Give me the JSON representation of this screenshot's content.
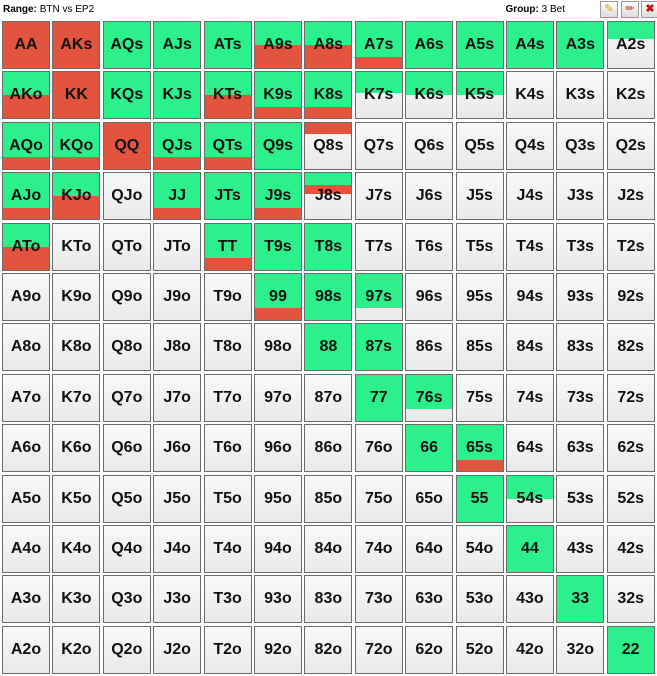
{
  "header": {
    "range_label": "Range:",
    "range_value": "BTN vs EP2",
    "group_label": "Group:",
    "group_value": "3 Bet",
    "buttons": [
      {
        "name": "edit-button",
        "icon": "pencil-icon"
      },
      {
        "name": "edit-alt-button",
        "icon": "brush-icon"
      },
      {
        "name": "close-button",
        "icon": "close-icon"
      }
    ]
  },
  "colors": {
    "green": "#2cf08c",
    "red": "#e2543e",
    "empty": "#f2f2f2"
  },
  "grid": {
    "rows": [
      [
        "AA",
        "AKs",
        "AQs",
        "AJs",
        "ATs",
        "A9s",
        "A8s",
        "A7s",
        "A6s",
        "A5s",
        "A4s",
        "A3s",
        "A2s"
      ],
      [
        "AKo",
        "KK",
        "KQs",
        "KJs",
        "KTs",
        "K9s",
        "K8s",
        "K7s",
        "K6s",
        "K5s",
        "K4s",
        "K3s",
        "K2s"
      ],
      [
        "AQo",
        "KQo",
        "QQ",
        "QJs",
        "QTs",
        "Q9s",
        "Q8s",
        "Q7s",
        "Q6s",
        "Q5s",
        "Q4s",
        "Q3s",
        "Q2s"
      ],
      [
        "AJo",
        "KJo",
        "QJo",
        "JJ",
        "JTs",
        "J9s",
        "J8s",
        "J7s",
        "J6s",
        "J5s",
        "J4s",
        "J3s",
        "J2s"
      ],
      [
        "ATo",
        "KTo",
        "QTo",
        "JTo",
        "TT",
        "T9s",
        "T8s",
        "T7s",
        "T6s",
        "T5s",
        "T4s",
        "T3s",
        "T2s"
      ],
      [
        "A9o",
        "K9o",
        "Q9o",
        "J9o",
        "T9o",
        "99",
        "98s",
        "97s",
        "96s",
        "95s",
        "94s",
        "93s",
        "92s"
      ],
      [
        "A8o",
        "K8o",
        "Q8o",
        "J8o",
        "T8o",
        "98o",
        "88",
        "87s",
        "86s",
        "85s",
        "84s",
        "83s",
        "82s"
      ],
      [
        "A7o",
        "K7o",
        "Q7o",
        "J7o",
        "T7o",
        "97o",
        "87o",
        "77",
        "76s",
        "75s",
        "74s",
        "73s",
        "72s"
      ],
      [
        "A6o",
        "K6o",
        "Q6o",
        "J6o",
        "T6o",
        "96o",
        "86o",
        "76o",
        "66",
        "65s",
        "64s",
        "63s",
        "62s"
      ],
      [
        "A5o",
        "K5o",
        "Q5o",
        "J5o",
        "T5o",
        "95o",
        "85o",
        "75o",
        "65o",
        "55",
        "54s",
        "53s",
        "52s"
      ],
      [
        "A4o",
        "K4o",
        "Q4o",
        "J4o",
        "T4o",
        "94o",
        "84o",
        "74o",
        "64o",
        "54o",
        "44",
        "43s",
        "42s"
      ],
      [
        "A3o",
        "K3o",
        "Q3o",
        "J3o",
        "T3o",
        "93o",
        "83o",
        "73o",
        "63o",
        "53o",
        "43o",
        "33",
        "32s"
      ],
      [
        "A2o",
        "K2o",
        "Q2o",
        "J2o",
        "T2o",
        "92o",
        "82o",
        "72o",
        "62o",
        "52o",
        "42o",
        "32o",
        "22"
      ]
    ],
    "frequencies": {
      "AA": {
        "green": 0,
        "red": 1
      },
      "AKs": {
        "green": 0,
        "red": 1
      },
      "AQs": {
        "green": 1,
        "red": 0
      },
      "AJs": {
        "green": 1,
        "red": 0
      },
      "ATs": {
        "green": 1,
        "red": 0
      },
      "A9s": {
        "green": 0.5,
        "red": 0.5
      },
      "A8s": {
        "green": 0.5,
        "red": 0.5
      },
      "A7s": {
        "green": 0.75,
        "red": 0.25
      },
      "A6s": {
        "green": 1,
        "red": 0
      },
      "A5s": {
        "green": 1,
        "red": 0
      },
      "A4s": {
        "green": 1,
        "red": 0
      },
      "A3s": {
        "green": 1,
        "red": 0
      },
      "A2s": {
        "green": 0.38,
        "red": 0
      },
      "AKo": {
        "green": 0.5,
        "red": 0.5
      },
      "KK": {
        "green": 0,
        "red": 1
      },
      "KQs": {
        "green": 1,
        "red": 0
      },
      "KJs": {
        "green": 1,
        "red": 0
      },
      "KTs": {
        "green": 0.5,
        "red": 0.5
      },
      "K9s": {
        "green": 0.75,
        "red": 0.25
      },
      "K8s": {
        "green": 0.75,
        "red": 0.25
      },
      "K7s": {
        "green": 0.45,
        "red": 0
      },
      "K6s": {
        "green": 0.5,
        "red": 0
      },
      "K5s": {
        "green": 0.5,
        "red": 0
      },
      "AQo": {
        "green": 0.75,
        "red": 0.25
      },
      "KQo": {
        "green": 0.75,
        "red": 0.25
      },
      "QQ": {
        "green": 0,
        "red": 1
      },
      "QJs": {
        "green": 0.75,
        "red": 0.25
      },
      "QTs": {
        "green": 0.75,
        "red": 0.25
      },
      "Q9s": {
        "green": 1,
        "red": 0
      },
      "Q8s": {
        "green": 0,
        "red": 0.25
      },
      "AJo": {
        "green": 0.75,
        "red": 0.25
      },
      "KJo": {
        "green": 0.5,
        "red": 0.5
      },
      "JJ": {
        "green": 0.75,
        "red": 0.25
      },
      "JTs": {
        "green": 1,
        "red": 0
      },
      "J9s": {
        "green": 0.75,
        "red": 0.25
      },
      "J8s": {
        "green": 0.25,
        "red": 0.2
      },
      "ATo": {
        "green": 0.5,
        "red": 0.5
      },
      "TT": {
        "green": 0.75,
        "red": 0.25
      },
      "T9s": {
        "green": 1,
        "red": 0
      },
      "T8s": {
        "green": 1,
        "red": 0
      },
      "99": {
        "green": 0.75,
        "red": 0.25
      },
      "98s": {
        "green": 1,
        "red": 0
      },
      "97s": {
        "green": 0.75,
        "red": 0
      },
      "88": {
        "green": 1,
        "red": 0
      },
      "87s": {
        "green": 1,
        "red": 0
      },
      "77": {
        "green": 1,
        "red": 0
      },
      "76s": {
        "green": 0.75,
        "red": 0
      },
      "66": {
        "green": 1,
        "red": 0
      },
      "65s": {
        "green": 0.75,
        "red": 0.25
      },
      "55": {
        "green": 1,
        "red": 0
      },
      "54s": {
        "green": 0.5,
        "red": 0
      },
      "44": {
        "green": 1,
        "red": 0
      },
      "33": {
        "green": 1,
        "red": 0
      },
      "22": {
        "green": 1,
        "red": 0
      }
    }
  }
}
